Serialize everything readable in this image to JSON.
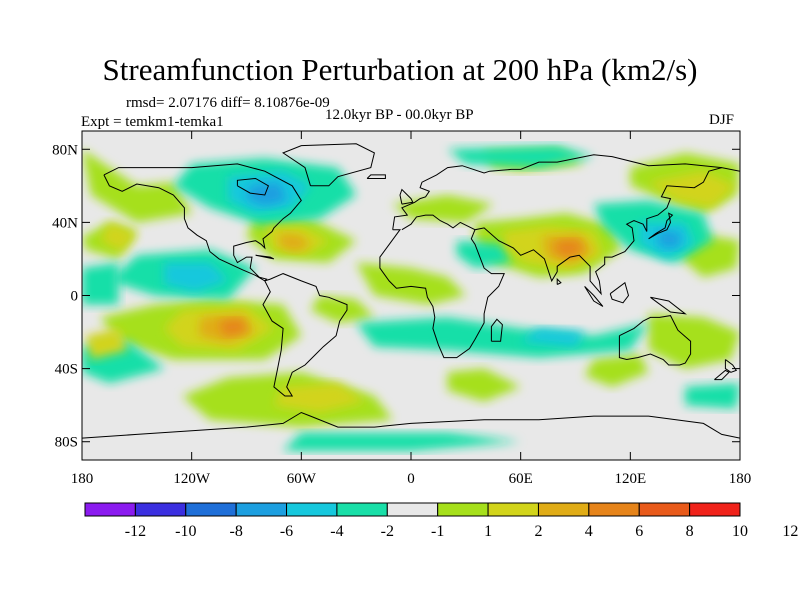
{
  "title": "Streamfunction Perturbation at 200 hPa (km2/s)",
  "stats": "rmsd= 2.07176  diff= 8.10876e-09",
  "experiment": "Expt = temkm1-temka1",
  "period": "12.0kyr BP - 00.0kyr BP",
  "season": "DJF",
  "colors": {
    "ocean_background": "#e8e8e8",
    "coastline": "#000000",
    "palette": [
      "#8b1bef",
      "#3b2fe0",
      "#1f6fd8",
      "#1c9fe0",
      "#16c8dd",
      "#19dfa8",
      "#e8e8e8",
      "#a6e01b",
      "#d2d41a",
      "#e0ac16",
      "#e6841a",
      "#e85a1a",
      "#f0221a"
    ]
  },
  "chart_data": {
    "type": "contour_map",
    "variable": "Streamfunction Perturbation",
    "level": "200 hPa",
    "units": "km2/s",
    "lon_range": [
      -180,
      180
    ],
    "lat_range": [
      -90,
      90
    ],
    "x_ticks": [
      "180",
      "120W",
      "60W",
      "0",
      "60E",
      "120E",
      "180"
    ],
    "y_ticks": [
      "80N",
      "40N",
      "0",
      "40S",
      "80S"
    ],
    "colorbar_labels": [
      "-12",
      "-10",
      "-8",
      "-6",
      "-4",
      "-2",
      "-1",
      "1",
      "2",
      "4",
      "6",
      "8",
      "10",
      "12"
    ],
    "contour_levels": [
      -12,
      -10,
      -8,
      -6,
      -4,
      -2,
      -1,
      1,
      2,
      4,
      6,
      8,
      10,
      12
    ],
    "notable_features": [
      {
        "label": "max over South Asia",
        "lon": 88,
        "lat": 25,
        "value": 8
      },
      {
        "label": "max over tropical SE Pacific",
        "lon": -100,
        "lat": -15,
        "value": 8
      },
      {
        "label": "min over NE Canada",
        "lon": -78,
        "lat": 55,
        "value": -8
      },
      {
        "label": "min over subtropical Pacific",
        "lon": -118,
        "lat": 10,
        "value": -6
      },
      {
        "label": "min over Japan",
        "lon": 140,
        "lat": 30,
        "value": -6
      },
      {
        "label": "max over N Atlantic",
        "lon": -55,
        "lat": 30,
        "value": 6
      }
    ]
  }
}
